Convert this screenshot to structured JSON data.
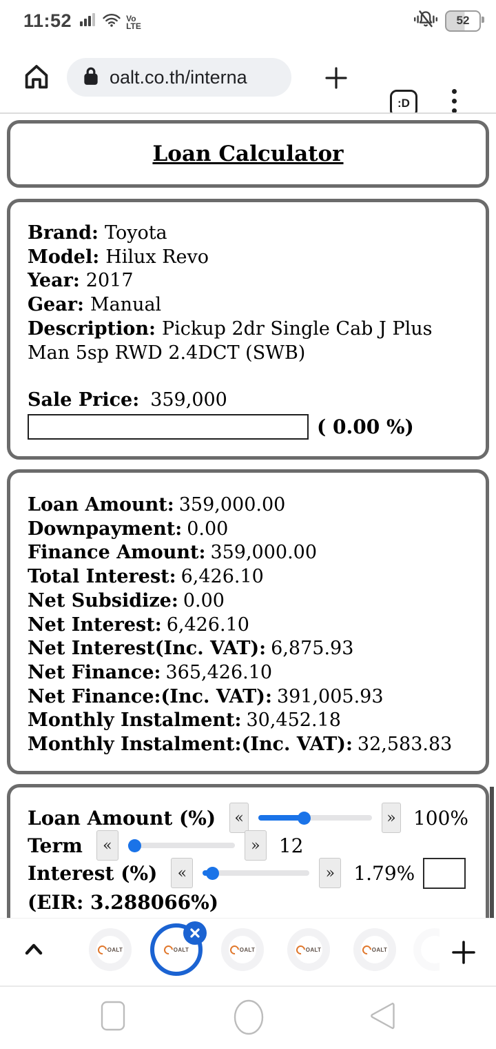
{
  "status_bar": {
    "time": "11:52",
    "network_line1": "Vo",
    "network_line2": "LTE",
    "battery_percent": "52"
  },
  "browser": {
    "url": "oalt.co.th/interna",
    "tab_count_badge": ":D"
  },
  "page": {
    "title": "Loan Calculator",
    "vehicle": {
      "fields": [
        {
          "label": "Brand:",
          "value": "Toyota"
        },
        {
          "label": "Model:",
          "value": "Hilux Revo"
        },
        {
          "label": "Year:",
          "value": "2017"
        },
        {
          "label": "Gear:",
          "value": "Manual"
        },
        {
          "label": "Description:",
          "value": "Pickup 2dr Single Cab J Plus Man 5sp RWD 2.4DCT (SWB)"
        }
      ],
      "sale_price_label": "Sale Price:",
      "sale_price_value": "359,000",
      "discount_input_value": "",
      "discount_percent": "( 0.00 %)"
    },
    "summary": {
      "rows": [
        {
          "label": "Loan Amount:",
          "value": "359,000.00"
        },
        {
          "label": "Downpayment:",
          "value": "0.00"
        },
        {
          "label": "Finance Amount:",
          "value": "359,000.00"
        },
        {
          "label": "Total Interest:",
          "value": "6,426.10"
        },
        {
          "label": "Net Subsidize:",
          "value": "0.00"
        },
        {
          "label": "Net Interest:",
          "value": "6,426.10"
        },
        {
          "label": "Net Interest(Inc. VAT):",
          "value": "6,875.93"
        },
        {
          "label": "Net Finance:",
          "value": "365,426.10"
        },
        {
          "label": "Net Finance:(Inc. VAT):",
          "value": "391,005.93"
        },
        {
          "label": "Monthly Instalment:",
          "value": "30,452.18"
        },
        {
          "label": "Monthly Instalment:(Inc. VAT):",
          "value": "32,583.83"
        }
      ]
    },
    "controls": {
      "dec_symbol": "«",
      "inc_symbol": "»",
      "rows": [
        {
          "label": "Loan Amount (%)",
          "value": "100%",
          "fill_pct": 40
        },
        {
          "label": "Term",
          "value": "12",
          "fill_pct": 6
        },
        {
          "label": "Interest (%)",
          "value": "1.79%",
          "fill_pct": 9,
          "input_value": ""
        }
      ],
      "eir": "(EIR: 3.288066%)"
    }
  },
  "tab_strip": {
    "favicon_text": "OALT"
  },
  "colors": {
    "slider_accent": "#1a73e8",
    "active_tab_ring": "#1b63d2",
    "box_border": "#6b6b6b"
  }
}
